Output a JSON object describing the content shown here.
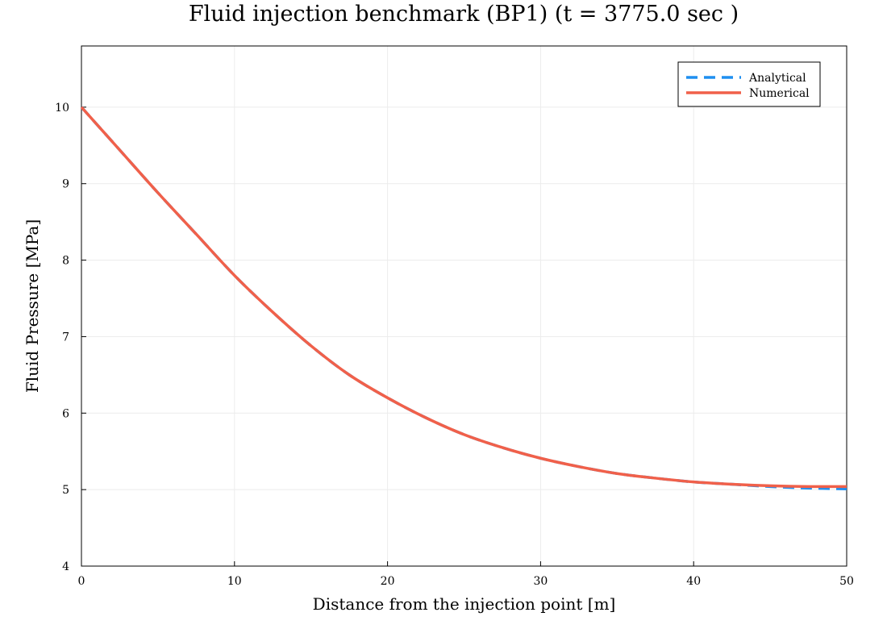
{
  "chart_data": {
    "type": "line",
    "title": "Fluid injection benchmark (BP1) (t = 3775.0 sec )",
    "xlabel": "Distance from the injection point [m]",
    "ylabel": "Fluid Pressure [MPa]",
    "xlim": [
      0,
      50
    ],
    "ylim": [
      4,
      10.8
    ],
    "x_ticks": [
      0,
      10,
      20,
      30,
      40,
      50
    ],
    "y_ticks": [
      4,
      5,
      6,
      7,
      8,
      9,
      10
    ],
    "grid": true,
    "legend_position": "top-right",
    "series": [
      {
        "name": "Analytical",
        "color": "#1f8ff0",
        "style": "dashed",
        "x": [
          0,
          2.5,
          5,
          7.5,
          10,
          12.5,
          15,
          17.5,
          20,
          22.5,
          25,
          27.5,
          30,
          32.5,
          35,
          37.5,
          40,
          42.5,
          45,
          47.5,
          50
        ],
        "y": [
          10.0,
          9.44,
          8.88,
          8.34,
          7.8,
          7.32,
          6.88,
          6.5,
          6.2,
          5.94,
          5.72,
          5.55,
          5.41,
          5.3,
          5.21,
          5.15,
          5.1,
          5.07,
          5.04,
          5.02,
          5.01
        ]
      },
      {
        "name": "Numerical",
        "color": "#f0604a",
        "style": "solid",
        "x": [
          0,
          2.5,
          5,
          7.5,
          10,
          12.5,
          15,
          17.5,
          20,
          22.5,
          25,
          27.5,
          30,
          32.5,
          35,
          37.5,
          40,
          42.5,
          45,
          47.5,
          50
        ],
        "y": [
          10.0,
          9.44,
          8.88,
          8.34,
          7.8,
          7.32,
          6.88,
          6.5,
          6.2,
          5.94,
          5.72,
          5.55,
          5.41,
          5.3,
          5.21,
          5.15,
          5.1,
          5.07,
          5.05,
          5.04,
          5.04
        ]
      }
    ]
  }
}
